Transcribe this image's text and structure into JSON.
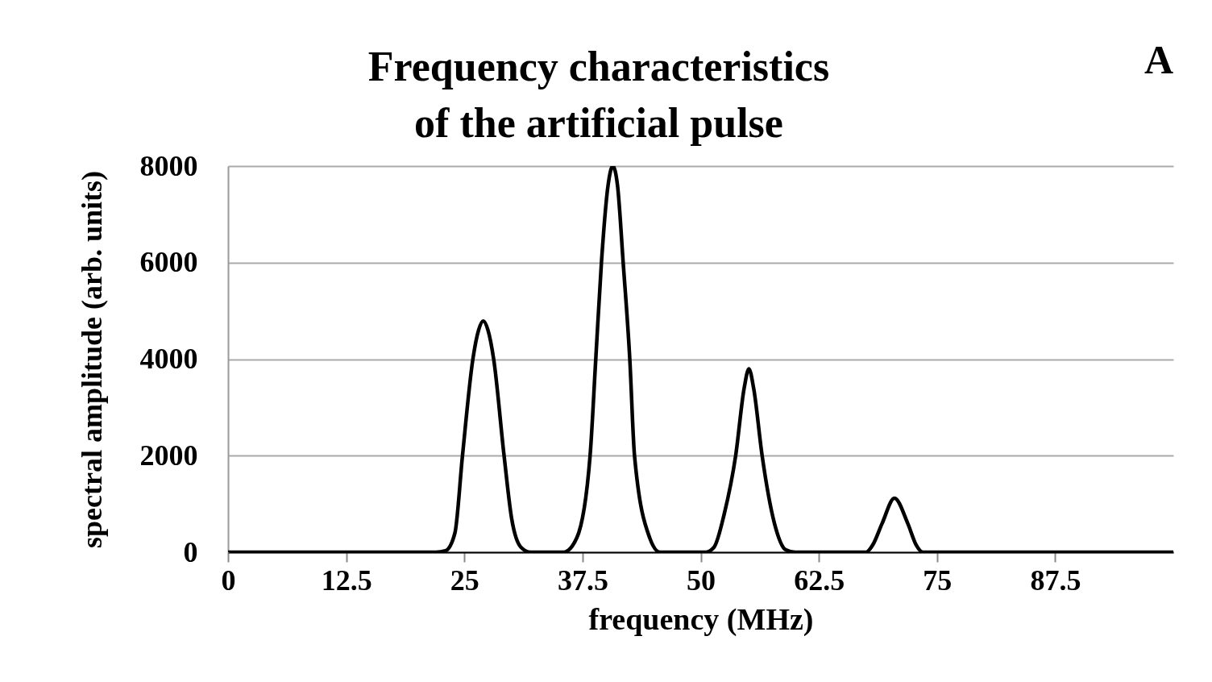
{
  "chart_data": {
    "type": "line",
    "title": [
      "Frequency characteristics",
      "of the artificial pulse"
    ],
    "xlabel": "frequency (MHz)",
    "ylabel": "spectral amplitude (arb. units)",
    "annotations": [
      "A"
    ],
    "color": "#000000",
    "grid": "y",
    "xlim": [
      0,
      100
    ],
    "xticks": [
      0,
      12.5,
      25,
      37.5,
      50,
      62.5,
      75,
      87.5
    ],
    "ylim": [
      0,
      8000
    ],
    "yticks": [
      0,
      2000,
      4000,
      6000,
      8000
    ],
    "x": [
      0,
      22,
      23,
      24,
      24.8,
      25.9,
      26.5,
      27,
      27.5,
      28.1,
      29.2,
      30,
      31,
      32,
      35.5,
      36.9,
      38.3,
      38.9,
      39.5,
      40.2,
      40.7,
      41.2,
      41.8,
      42.5,
      43,
      44.6,
      45.7,
      50.5,
      51.4,
      52.5,
      53.7,
      54.6,
      55.1,
      55.6,
      56.5,
      57.8,
      59,
      60,
      67.5,
      68.2,
      69.2,
      70.5,
      71.9,
      72.8,
      73.5,
      100
    ],
    "values": [
      0,
      0,
      30,
      400,
      2000,
      4000,
      4600,
      4790,
      4600,
      4000,
      2000,
      700,
      100,
      0,
      0,
      300,
      2000,
      4000,
      6000,
      7600,
      8000,
      7600,
      6000,
      4000,
      2000,
      300,
      0,
      0,
      100,
      800,
      2000,
      3400,
      3800,
      3400,
      2000,
      600,
      50,
      0,
      0,
      150,
      600,
      1120,
      600,
      150,
      0,
      0
    ]
  }
}
